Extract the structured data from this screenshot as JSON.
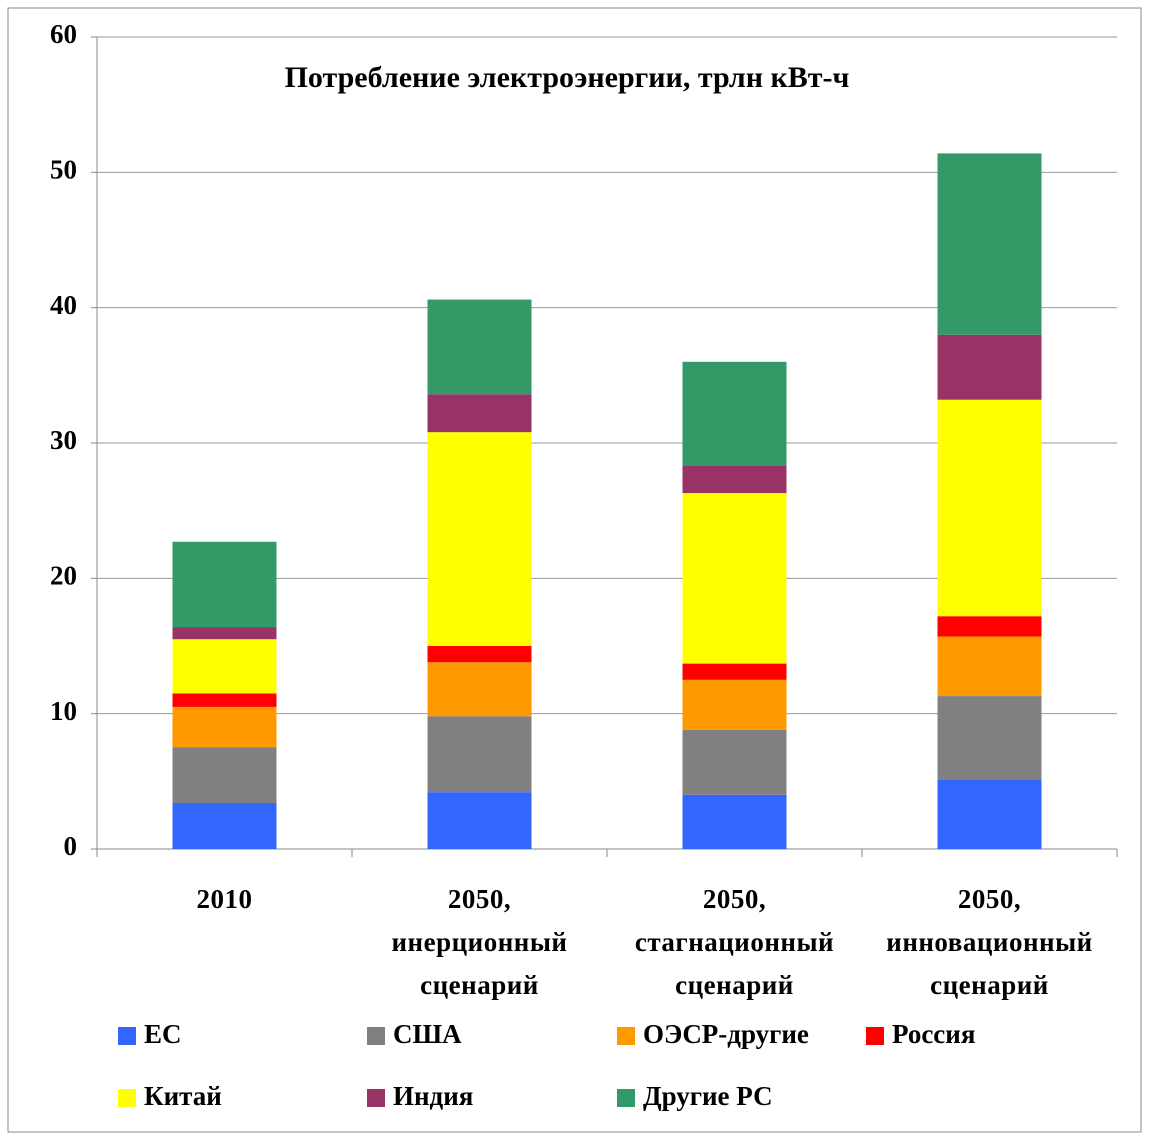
{
  "chart_data": {
    "type": "stacked_bar",
    "title": "Потребление электроэнергии, трлн кВт-ч",
    "categories": [
      "2010",
      "2050,\nинерционный\nсценарий",
      "2050,\nстагнационный\nсценарий",
      "2050,\nинновационный\nсценарий"
    ],
    "series": [
      {
        "name": "ЕС",
        "color": "#3366ff",
        "values": [
          3.4,
          4.2,
          4.0,
          5.1
        ]
      },
      {
        "name": "США",
        "color": "#808080",
        "values": [
          4.1,
          5.6,
          4.8,
          6.2
        ]
      },
      {
        "name": "ОЭСР-другие",
        "color": "#ff9900",
        "values": [
          3.0,
          4.0,
          3.7,
          4.4
        ]
      },
      {
        "name": "Россия",
        "color": "#ff0000",
        "values": [
          1.0,
          1.2,
          1.2,
          1.5
        ]
      },
      {
        "name": "Китай",
        "color": "#ffff00",
        "values": [
          4.0,
          15.8,
          12.6,
          16.0
        ]
      },
      {
        "name": "Индия",
        "color": "#993366",
        "values": [
          0.9,
          2.8,
          2.0,
          4.8
        ]
      },
      {
        "name": "Другие РС",
        "color": "#339966",
        "values": [
          6.3,
          7.0,
          7.7,
          13.4
        ]
      }
    ],
    "ylim": [
      0,
      60
    ],
    "yticks": [
      0,
      10,
      20,
      30,
      40,
      50,
      60
    ],
    "grid": true
  }
}
